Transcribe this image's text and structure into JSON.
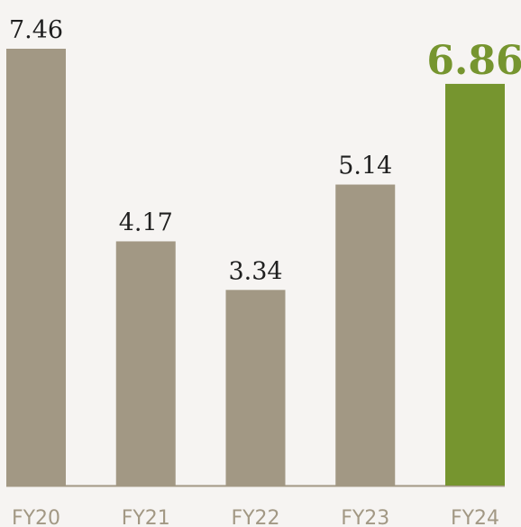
{
  "chart_data": {
    "type": "bar",
    "categories": [
      "FY20",
      "FY21",
      "FY22",
      "FY23",
      "FY24"
    ],
    "values": [
      7.46,
      4.17,
      3.34,
      5.14,
      6.86
    ],
    "value_labels": [
      "7.46",
      "4.17",
      "3.34",
      "5.14",
      "6.86"
    ],
    "highlight_index": 4,
    "ylim": [
      0,
      7.46
    ],
    "grid": false,
    "legend": "none",
    "colors": {
      "bar": "#a29884",
      "highlight": "#76952f",
      "baseline": "#a29884",
      "category_text": "#a29884",
      "background": "#f6f4f2"
    }
  }
}
